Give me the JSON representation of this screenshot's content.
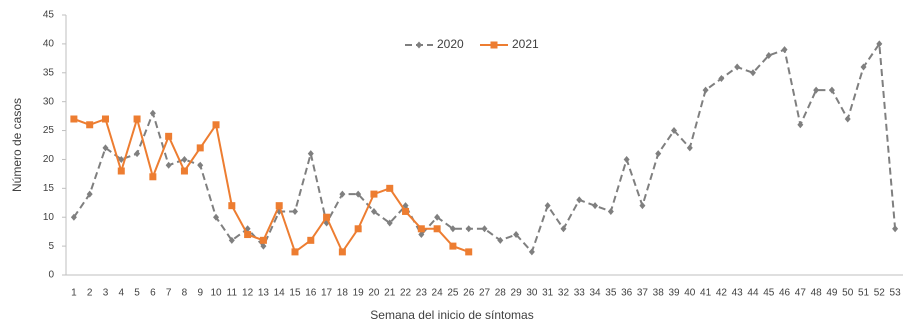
{
  "chart_data": {
    "type": "line",
    "x_label": "Semana del inicio de síntomas",
    "y_label": "Número de casos",
    "categories": [
      "1",
      "2",
      "3",
      "4",
      "5",
      "6",
      "7",
      "8",
      "9",
      "10",
      "11",
      "12",
      "13",
      "14",
      "15",
      "16",
      "17",
      "18",
      "19",
      "20",
      "21",
      "22",
      "23",
      "24",
      "25",
      "26",
      "27",
      "28",
      "29",
      "30",
      "31",
      "32",
      "33",
      "34",
      "35",
      "36",
      "37",
      "38",
      "39",
      "40",
      "41",
      "42",
      "43",
      "44",
      "45",
      "46",
      "47",
      "48",
      "49",
      "50",
      "51",
      "52",
      "53"
    ],
    "series": [
      {
        "name": "2020",
        "color": "#7f7f7f",
        "dashed": true,
        "marker": "diamond",
        "values": [
          10,
          14,
          22,
          20,
          21,
          28,
          19,
          20,
          19,
          10,
          6,
          8,
          5,
          11,
          11,
          21,
          9,
          14,
          14,
          11,
          9,
          12,
          7,
          10,
          8,
          8,
          8,
          6,
          7,
          4,
          12,
          8,
          13,
          12,
          11,
          20,
          12,
          21,
          25,
          22,
          32,
          34,
          36,
          35,
          38,
          39,
          26,
          32,
          32,
          27,
          36,
          40,
          8
        ]
      },
      {
        "name": "2021",
        "color": "#ed7d31",
        "dashed": false,
        "marker": "square",
        "values": [
          27,
          26,
          27,
          18,
          27,
          17,
          24,
          18,
          22,
          26,
          12,
          7,
          6,
          12,
          4,
          6,
          10,
          4,
          8,
          14,
          15,
          11,
          8,
          8,
          5,
          4,
          null,
          null,
          null,
          null,
          null,
          null,
          null,
          null,
          null,
          null,
          null,
          null,
          null,
          null,
          null,
          null,
          null,
          null,
          null,
          null,
          null,
          null,
          null,
          null,
          null,
          null,
          null
        ]
      }
    ],
    "ylim": [
      0,
      45
    ],
    "yticks": [
      0,
      5,
      10,
      15,
      20,
      25,
      30,
      35,
      40,
      45
    ],
    "grid": false,
    "legend": "top"
  }
}
